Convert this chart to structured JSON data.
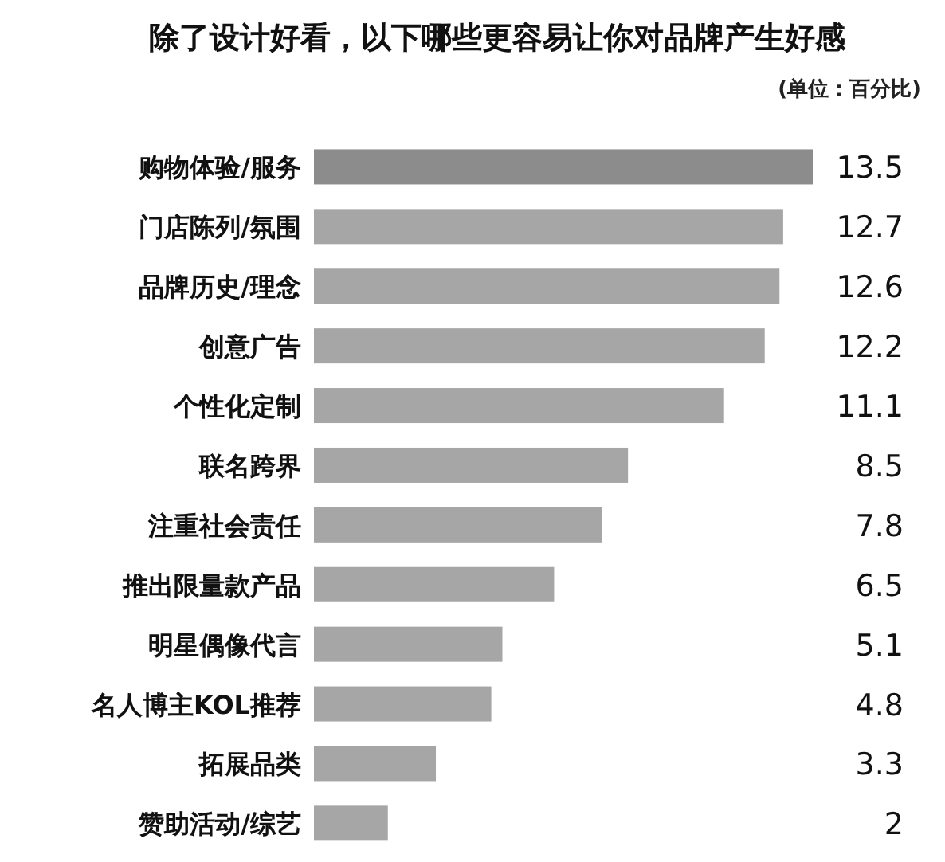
{
  "chart_data": {
    "type": "bar",
    "orientation": "horizontal",
    "title": "除了设计好看，以下哪些更容易让你对品牌产生好感",
    "subtitle": "(单位：百分比)",
    "categories": [
      "购物体验/服务",
      "门店陈列/氛围",
      "品牌历史/理念",
      "创意广告",
      "个性化定制",
      "联名跨界",
      "注重社会责任",
      "推出限量款产品",
      "明星偶像代言",
      "名人博主KOL推荐",
      "拓展品类",
      "赞助活动/综艺"
    ],
    "values": [
      13.5,
      12.7,
      12.6,
      12.2,
      11.1,
      8.5,
      7.8,
      6.5,
      5.1,
      4.8,
      3.3,
      2
    ],
    "colors": [
      "#8c8c8c",
      "#a6a6a6",
      "#a6a6a6",
      "#a6a6a6",
      "#a6a6a6",
      "#a6a6a6",
      "#a6a6a6",
      "#a6a6a6",
      "#a6a6a6",
      "#a6a6a6",
      "#a6a6a6",
      "#a6a6a6"
    ],
    "data_labels": true
  }
}
